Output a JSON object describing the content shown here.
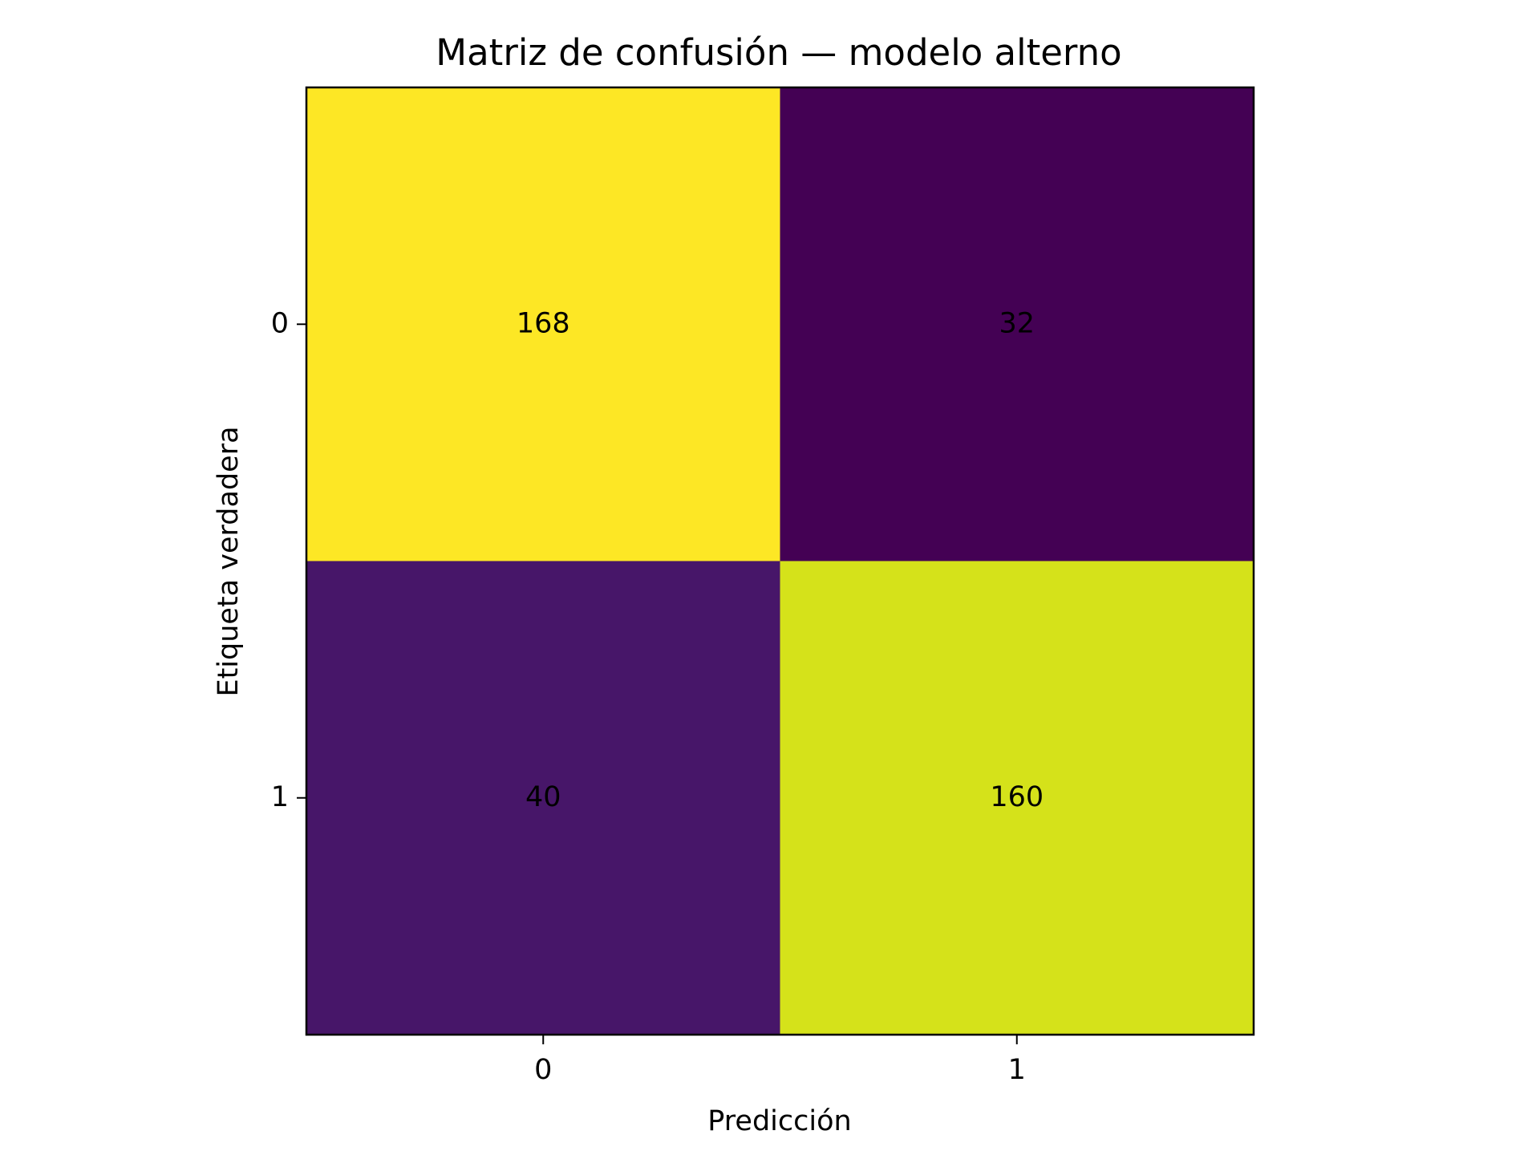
{
  "chart_data": {
    "type": "heatmap",
    "title": "Matriz de confusión — modelo alterno",
    "xlabel": "Predicción",
    "ylabel": "Etiqueta verdadera",
    "x_categories": [
      "0",
      "1"
    ],
    "y_categories": [
      "0",
      "1"
    ],
    "values": [
      [
        168,
        32
      ],
      [
        40,
        160
      ]
    ],
    "cell_colors": [
      [
        "#fde725",
        "#440154"
      ],
      [
        "#471669",
        "#d5e21a"
      ]
    ],
    "colormap": "viridis",
    "grid": false,
    "legend": "none"
  }
}
